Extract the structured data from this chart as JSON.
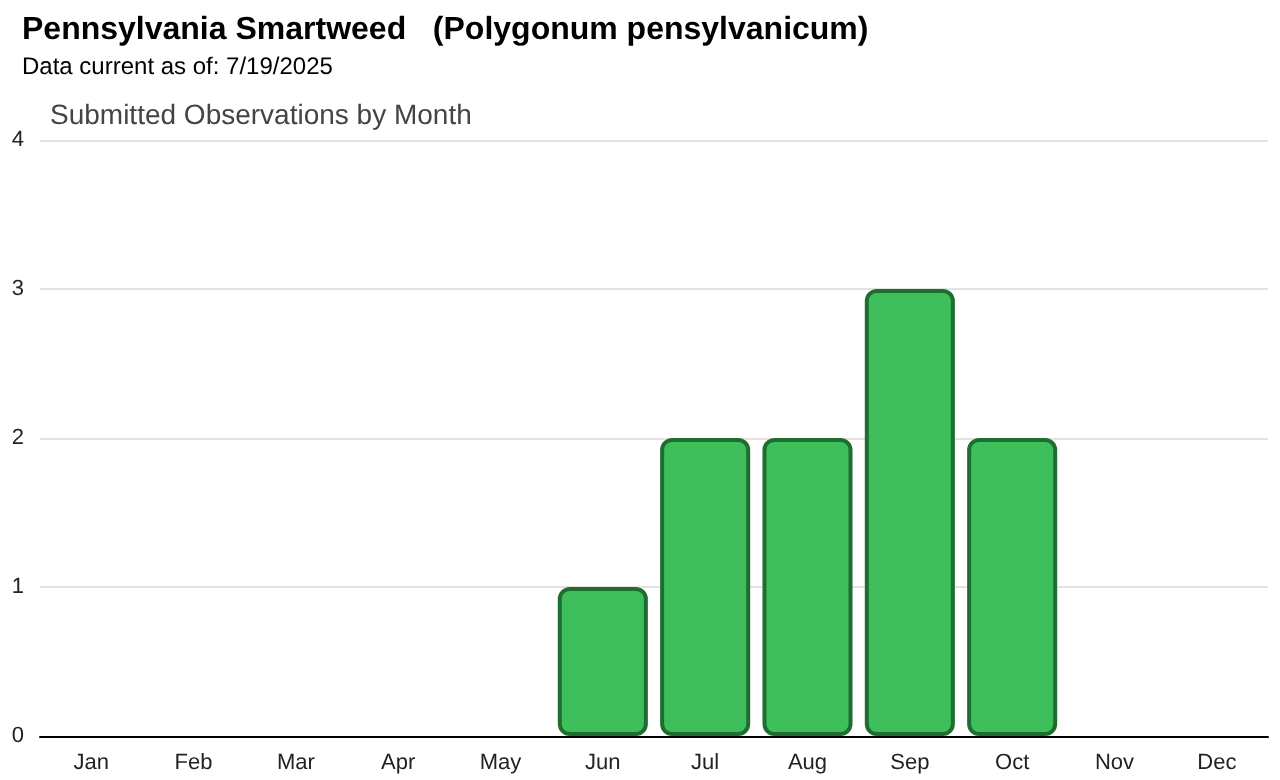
{
  "chart_data": {
    "type": "bar",
    "title": "Pennsylvania Smartweed   (Polygonum pensylvanicum)",
    "subtitle": "Data current as of: 7/19/2025",
    "annotations": [
      "Submitted Observations by Month"
    ],
    "categories": [
      "Jan",
      "Feb",
      "Mar",
      "Apr",
      "May",
      "Jun",
      "Jul",
      "Aug",
      "Sep",
      "Oct",
      "Nov",
      "Dec"
    ],
    "values": [
      0,
      0,
      0,
      0,
      0,
      1,
      2,
      2,
      3,
      2,
      0,
      0
    ],
    "color": "#3fbf5c",
    "ylim": [
      0,
      4
    ],
    "yticks": [
      0,
      1,
      2,
      3,
      4
    ],
    "grid": "y"
  }
}
